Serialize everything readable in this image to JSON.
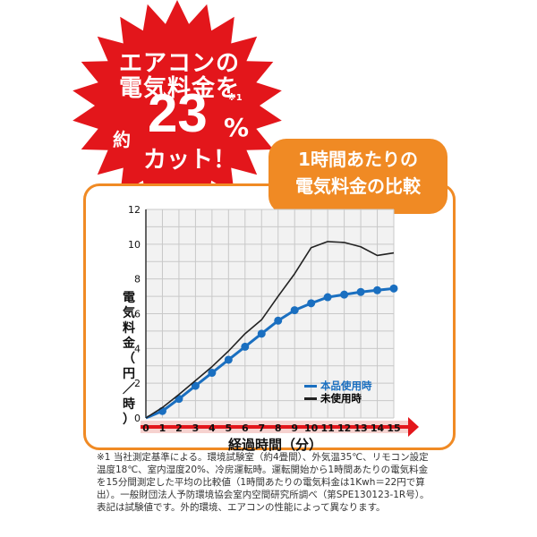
{
  "burst": {
    "line1": "エアコンの",
    "line2": "電気料金を",
    "prefix": "約",
    "number": "23",
    "percent": "%",
    "note": "※1",
    "line4": "カット！",
    "color": "#e3161b"
  },
  "badge": {
    "line1": "1時間あたりの",
    "line2": "電気料金の比較",
    "color": "#f08a24"
  },
  "ylabel_chars": [
    "電",
    "気",
    "料",
    "金",
    "（",
    "円",
    "／",
    "時",
    "）"
  ],
  "footnote": "※1 当社測定基準による。環境試験室（約4畳間）、外気温35℃、リモコン設定温度18℃、室内湿度20%、冷房運転時。運転開始から1時間あたりの電気料金を15分間測定した平均の比較値（1時間あたりの電気料金は1Kwh＝22円で算出）。一般財団法人予防環境協会室内空間研究所調べ（第SPE130123-1R号）。表記は試験値です。外的環境、エアコンの性能によって異なります。",
  "chart_data": {
    "type": "line",
    "title": "",
    "xlabel": "経過時間（分）",
    "ylabel": "電気料金（円／時）",
    "x": [
      0,
      1,
      2,
      3,
      4,
      5,
      6,
      7,
      8,
      9,
      10,
      11,
      12,
      13,
      14,
      15
    ],
    "xlim": [
      0,
      15
    ],
    "ylim": [
      0,
      12
    ],
    "yticks": [
      0,
      2,
      4,
      6,
      8,
      10,
      12
    ],
    "xticks": [
      "0",
      "1",
      "2",
      "3",
      "4",
      "5",
      "6",
      "7",
      "8",
      "9",
      "10",
      "11",
      "12",
      "13",
      "14",
      "15"
    ],
    "grid": true,
    "legend_position": "bottom-right",
    "series": [
      {
        "name": "本品使用時",
        "color": "#1a6fc0",
        "markers": true,
        "values": [
          0,
          0.4,
          1.1,
          1.85,
          2.6,
          3.35,
          4.1,
          4.85,
          5.6,
          6.2,
          6.6,
          6.95,
          7.1,
          7.25,
          7.35,
          7.45
        ]
      },
      {
        "name": "未使用時",
        "color": "#222222",
        "markers": false,
        "values": [
          0,
          0.6,
          1.35,
          2.15,
          2.95,
          3.85,
          4.85,
          5.65,
          7.0,
          8.3,
          9.8,
          10.15,
          10.1,
          9.85,
          9.35,
          9.5
        ]
      }
    ]
  }
}
